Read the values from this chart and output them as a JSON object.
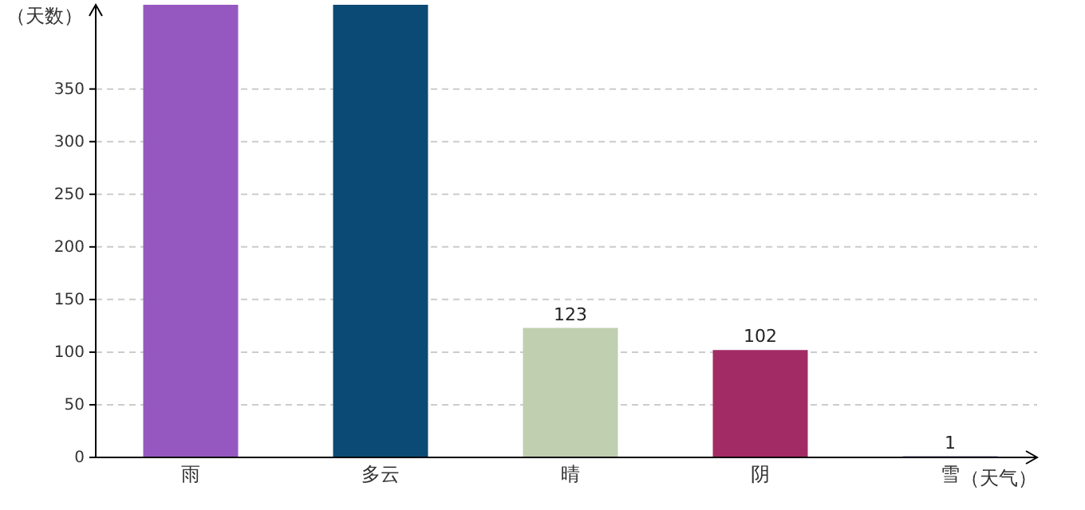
{
  "chart_data": {
    "type": "bar",
    "xlabel": "（天气）",
    "ylabel": "（天数）",
    "categories": [
      "雨",
      "多云",
      "晴",
      "阴",
      "雪"
    ],
    "values": [
      430,
      430,
      123,
      102,
      1
    ],
    "value_labels": [
      null,
      null,
      "123",
      "102",
      "1"
    ],
    "colors": [
      "#9558c0",
      "#0b4a74",
      "#bfcfb0",
      "#a22b65",
      "#1c1c78"
    ],
    "ylim": [
      0,
      430
    ],
    "yticks": [
      0,
      50,
      100,
      150,
      200,
      250,
      300,
      350
    ],
    "grid": "y"
  }
}
